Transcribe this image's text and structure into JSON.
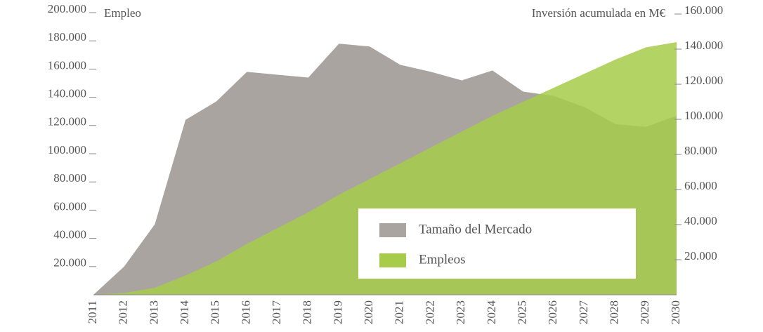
{
  "chart_data": {
    "type": "area",
    "ylabel": "Empleo",
    "y2label": "Inversión acumulada en M€",
    "categories": [
      "2011",
      "2012",
      "2013",
      "2014",
      "2015",
      "2016",
      "2017",
      "2018",
      "2019",
      "2020",
      "2021",
      "2022",
      "2023",
      "2024",
      "2025",
      "2026",
      "2027",
      "2028",
      "2029",
      "2030"
    ],
    "series": [
      {
        "name": "Tamaño del Mercado",
        "color": "#a9a4a0",
        "values": [
          0,
          20000,
          50000,
          124000,
          137000,
          158000,
          156000,
          154000,
          178000,
          176000,
          163000,
          158000,
          152000,
          159000,
          144000,
          141000,
          133000,
          121000,
          119000,
          127000
        ]
      },
      {
        "name": "Empleos",
        "color": "#a6cc4a",
        "axis": "y2",
        "values": [
          0,
          1000,
          4000,
          11000,
          19000,
          29000,
          38000,
          47000,
          57000,
          66000,
          75000,
          84000,
          93000,
          102000,
          110000,
          118000,
          126000,
          134000,
          141000,
          144000
        ]
      }
    ],
    "ylim": [
      0,
      200000
    ],
    "yticks": [
      {
        "value": 20000,
        "label": "20.000"
      },
      {
        "value": 40000,
        "label": "40.000"
      },
      {
        "value": 60000,
        "label": "60.000"
      },
      {
        "value": 80000,
        "label": "80.000"
      },
      {
        "value": 100000,
        "label": "100.000"
      },
      {
        "value": 120000,
        "label": "120.000"
      },
      {
        "value": 140000,
        "label": "140.000"
      },
      {
        "value": 160000,
        "label": "160.000"
      },
      {
        "value": 180000,
        "label": "180.000"
      },
      {
        "value": 200000,
        "label": "200.000"
      }
    ],
    "y2lim": [
      0,
      160000
    ],
    "y2ticks": [
      {
        "value": 20000,
        "label": "20.000"
      },
      {
        "value": 40000,
        "label": "40.000"
      },
      {
        "value": 60000,
        "label": "60.000"
      },
      {
        "value": 80000,
        "label": "80.000"
      },
      {
        "value": 100000,
        "label": "100.000"
      },
      {
        "value": 120000,
        "label": "120.000"
      },
      {
        "value": 140000,
        "label": "140.000"
      },
      {
        "value": 160000,
        "label": "160.000"
      }
    ]
  }
}
